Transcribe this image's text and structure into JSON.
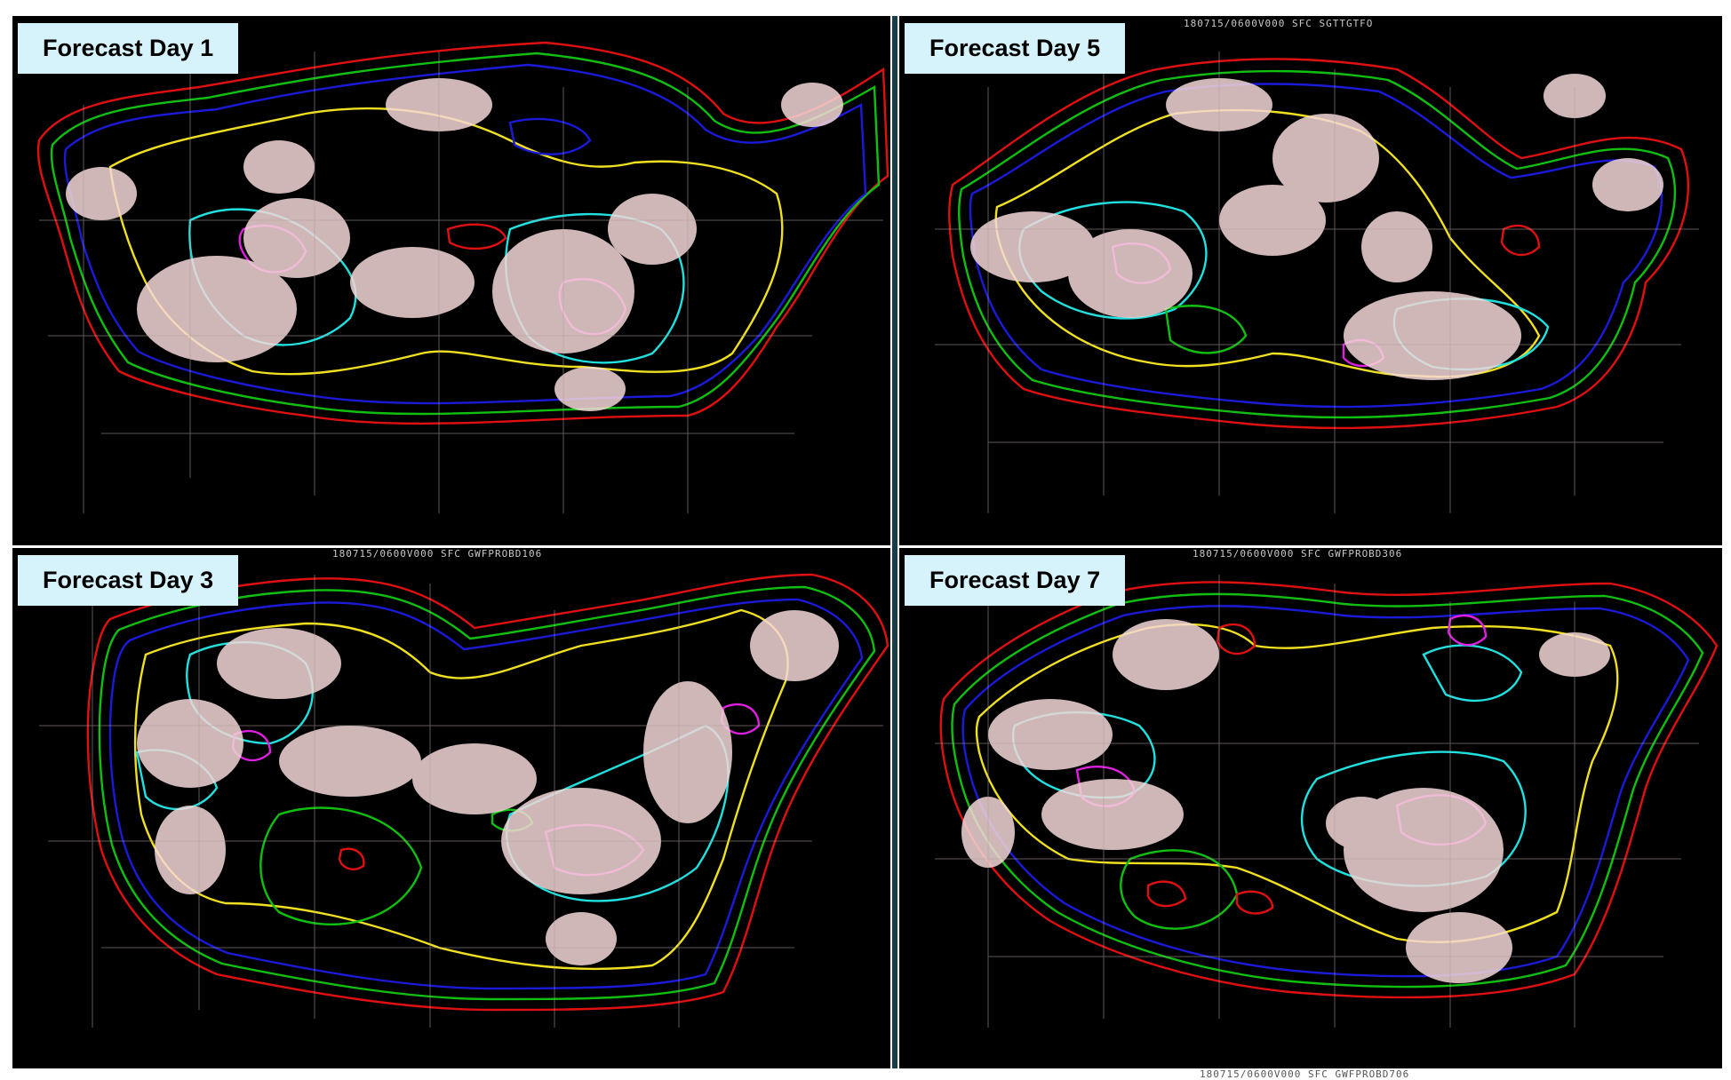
{
  "panels": [
    {
      "label": "Forecast Day 1",
      "header": "180715/0600V000  SFC  SGTTGTFO"
    },
    {
      "label": "Forecast Day 5",
      "header": "180715/0600V000  SFC  SGTTGTFO"
    },
    {
      "label": "Forecast Day 3",
      "header": "180715/0600V000  SFC  GWFPROBD106"
    },
    {
      "label": "Forecast Day 7",
      "header": "180715/0600V000  SFC  GWFPROBD306"
    }
  ],
  "footer": "180715/0600V000  SFC  GWFPROBD706",
  "contour_colors": {
    "red": "#e01010",
    "green": "#10c010",
    "blue": "#1a1ad8",
    "yellow": "#f0e020",
    "cyan": "#20e0e0",
    "magenta": "#e020e0",
    "points": "#f4d7d7",
    "borders": "#b0a0a0"
  }
}
